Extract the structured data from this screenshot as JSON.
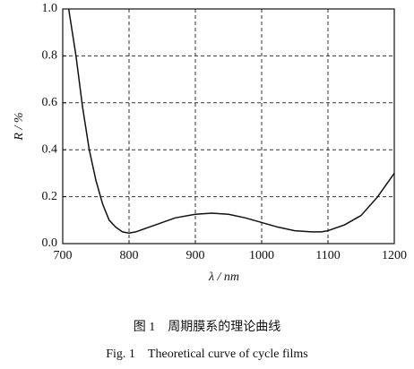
{
  "chart_data": {
    "type": "line",
    "xlabel": "λ / nm",
    "ylabel": "R / %",
    "caption_cn": "图 1　周期膜系的理论曲线",
    "caption_en": "Fig. 1　Theoretical curve of cycle films",
    "x": [
      709,
      720,
      730,
      740,
      750,
      760,
      770,
      780,
      790,
      800,
      810,
      830,
      850,
      870,
      900,
      925,
      950,
      975,
      1000,
      1025,
      1050,
      1075,
      1090,
      1100,
      1125,
      1150,
      1175,
      1200
    ],
    "series": [
      {
        "color": "#111111",
        "values": [
          1.0,
          0.8,
          0.58,
          0.4,
          0.27,
          0.17,
          0.1,
          0.07,
          0.05,
          0.045,
          0.05,
          0.07,
          0.09,
          0.11,
          0.125,
          0.13,
          0.125,
          0.11,
          0.09,
          0.07,
          0.055,
          0.05,
          0.05,
          0.055,
          0.08,
          0.12,
          0.2,
          0.3
        ]
      }
    ],
    "xlim": [
      700,
      1200
    ],
    "ylim": [
      0,
      1.0
    ],
    "xticks": [
      700,
      800,
      900,
      1000,
      1100,
      1200
    ],
    "yticks": [
      {
        "value": 0,
        "label": "0.0"
      },
      0.2,
      0.4,
      0.6,
      0.8,
      {
        "value": 1.0,
        "label": "1.0"
      }
    ],
    "grid": true
  }
}
